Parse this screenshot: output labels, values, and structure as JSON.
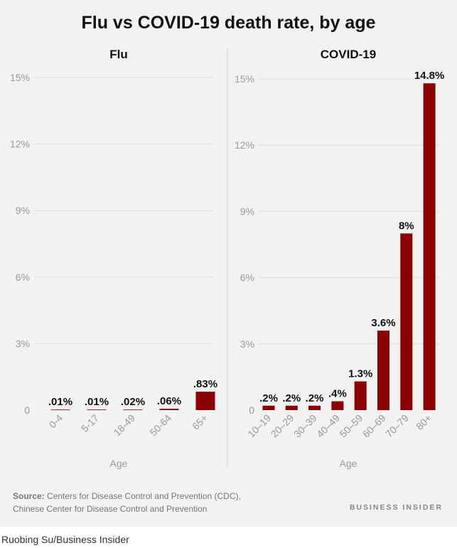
{
  "title": "Flu vs COVID-19 death rate, by age",
  "source_label": "Source:",
  "source_line1": "Centers for Disease Control and Prevention (CDC),",
  "source_line2": "Chinese Center for Disease Control and Prevention",
  "brand": "BUSINESS INSIDER",
  "credit": "Ruobing Su/Business Insider",
  "colors": {
    "bar": "#8b0000",
    "grid": "#dddddd",
    "axis_text": "#999999",
    "panel_bg": "#f2f2f2"
  },
  "chart_data": [
    {
      "type": "bar",
      "title": "Flu",
      "xlabel": "Age",
      "ylabel": "",
      "ylim": [
        0,
        15
      ],
      "yticks": [
        0,
        3,
        6,
        9,
        12,
        15
      ],
      "ytick_labels": [
        "0",
        "3%",
        "6%",
        "9%",
        "12%",
        "15%"
      ],
      "categories": [
        "0-4",
        "5-17",
        "18-49",
        "50-64",
        "65+"
      ],
      "values": [
        0.01,
        0.01,
        0.02,
        0.06,
        0.83
      ],
      "value_labels": [
        ".01%",
        ".01%",
        ".02%",
        ".06%",
        ".83%"
      ]
    },
    {
      "type": "bar",
      "title": "COVID-19",
      "xlabel": "Age",
      "ylabel": "",
      "ylim": [
        0,
        15
      ],
      "yticks": [
        0,
        3,
        6,
        9,
        12,
        15
      ],
      "ytick_labels": [
        "0",
        "3%",
        "6%",
        "9%",
        "12%",
        "15%"
      ],
      "categories": [
        "10–19",
        "20–29",
        "30–39",
        "40–49",
        "50–59",
        "60–69",
        "70–79",
        "80+"
      ],
      "values": [
        0.2,
        0.2,
        0.2,
        0.4,
        1.3,
        3.6,
        8,
        14.8
      ],
      "value_labels": [
        ".2%",
        ".2%",
        ".2%",
        ".4%",
        "1.3%",
        "3.6%",
        "8%",
        "14.8%"
      ]
    }
  ]
}
